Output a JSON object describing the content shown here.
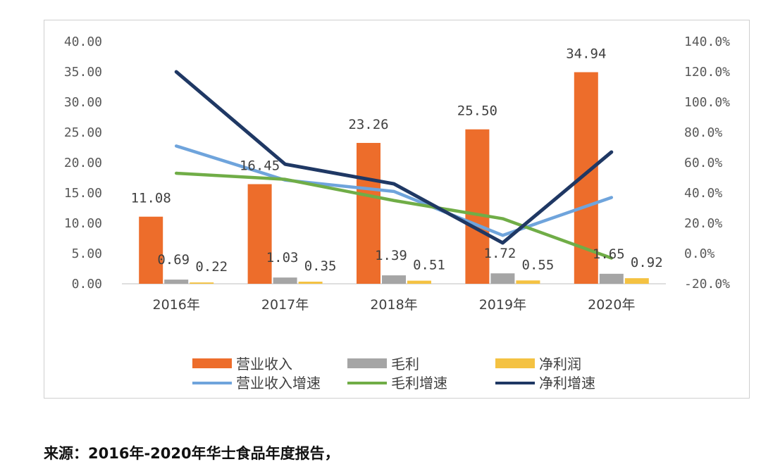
{
  "chart_data": {
    "type": "bar+line",
    "categories": [
      "2016年",
      "2017年",
      "2018年",
      "2019年",
      "2020年"
    ],
    "bar_series": [
      {
        "name": "营业收入",
        "color": "#ED6D2B",
        "values": [
          11.08,
          16.45,
          23.26,
          25.5,
          34.94
        ],
        "labels": [
          "11.08",
          "16.45",
          "23.26",
          "25.50",
          "34.94"
        ]
      },
      {
        "name": "毛利",
        "color": "#A5A5A5",
        "values": [
          0.69,
          1.03,
          1.39,
          1.72,
          1.65
        ],
        "labels": [
          "0.69",
          "1.03",
          "1.39",
          "1.72",
          "1.65"
        ]
      },
      {
        "name": "净利润",
        "color": "#F4C242",
        "values": [
          0.22,
          0.35,
          0.51,
          0.55,
          0.92
        ],
        "labels": [
          "0.22",
          "0.35",
          "0.51",
          "0.55",
          "0.92"
        ]
      }
    ],
    "line_series": [
      {
        "name": "营业收入增速",
        "color": "#6FA4DC",
        "axis": "right",
        "values": [
          71.0,
          48.5,
          41.0,
          12.0,
          37.0
        ]
      },
      {
        "name": "毛利增速",
        "color": "#70AD47",
        "axis": "right",
        "values": [
          53.0,
          49.0,
          35.0,
          23.0,
          -3.0
        ]
      },
      {
        "name": "净利增速",
        "color": "#1F3864",
        "axis": "right",
        "values": [
          120.0,
          59.0,
          46.0,
          7.0,
          67.0
        ]
      }
    ],
    "y_left": {
      "min": 0,
      "max": 40,
      "step": 5,
      "tick_labels": [
        "0.00",
        "5.00",
        "10.00",
        "15.00",
        "20.00",
        "25.00",
        "30.00",
        "35.00",
        "40.00"
      ]
    },
    "y_right": {
      "min": -20,
      "max": 140,
      "step": 20,
      "tick_labels": [
        "-20.0%",
        "0.0%",
        "20.0%",
        "40.0%",
        "60.0%",
        "80.0%",
        "100.0%",
        "120.0%",
        "140.0%"
      ]
    },
    "legend_order": [
      "营业收入",
      "毛利",
      "净利润",
      "营业收入增速",
      "毛利增速",
      "净利增速"
    ],
    "legend_position": "bottom",
    "grid": false
  },
  "source_note": "来源：2016年-2020年华士食品年度报告，"
}
